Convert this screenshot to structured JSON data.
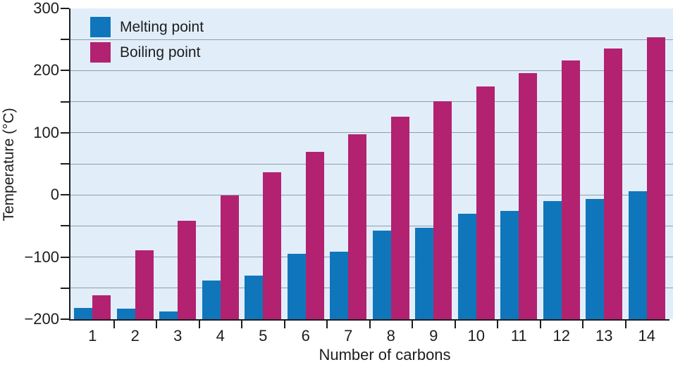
{
  "figure": {
    "background_color": "#ffffff",
    "plot_background_color": "#e1eefa",
    "gridline_color": "#8da0aa",
    "axis_color": "#1d1d1f",
    "text_color": "#1d1d1f"
  },
  "legend": {
    "position": "top-left",
    "items": [
      {
        "label": "Melting point",
        "color": "#1076bb"
      },
      {
        "label": "Boiling point",
        "color": "#b22270"
      }
    ]
  },
  "chart_data": {
    "type": "bar",
    "title": "",
    "xlabel": "Number of carbons",
    "ylabel": "Temperature (°C)",
    "categories": [
      "1",
      "2",
      "3",
      "4",
      "5",
      "6",
      "7",
      "8",
      "9",
      "10",
      "11",
      "12",
      "13",
      "14"
    ],
    "series": [
      {
        "name": "Melting point",
        "color": "#1076bb",
        "values": [
          -182,
          -183,
          -188,
          -138,
          -130,
          -95,
          -91,
          -57,
          -53,
          -30,
          -26,
          -10,
          -6,
          6
        ]
      },
      {
        "name": "Boiling point",
        "color": "#b22270",
        "values": [
          -162,
          -89,
          -42,
          -1,
          36,
          69,
          98,
          126,
          151,
          174,
          196,
          216,
          235,
          254
        ]
      }
    ],
    "ylim": [
      -200,
      300
    ],
    "grid": true,
    "gridline_interval": 50,
    "y_ticks": [
      {
        "label": "300",
        "value": 300
      },
      {
        "label": "200",
        "value": 200
      },
      {
        "label": "100",
        "value": 100
      },
      {
        "label": "0",
        "value": 0
      },
      {
        "label": "−100",
        "value": -100
      },
      {
        "label": "−200",
        "value": -200
      }
    ],
    "y_tick_mark_interval": 50,
    "legend_position": "top-left"
  }
}
